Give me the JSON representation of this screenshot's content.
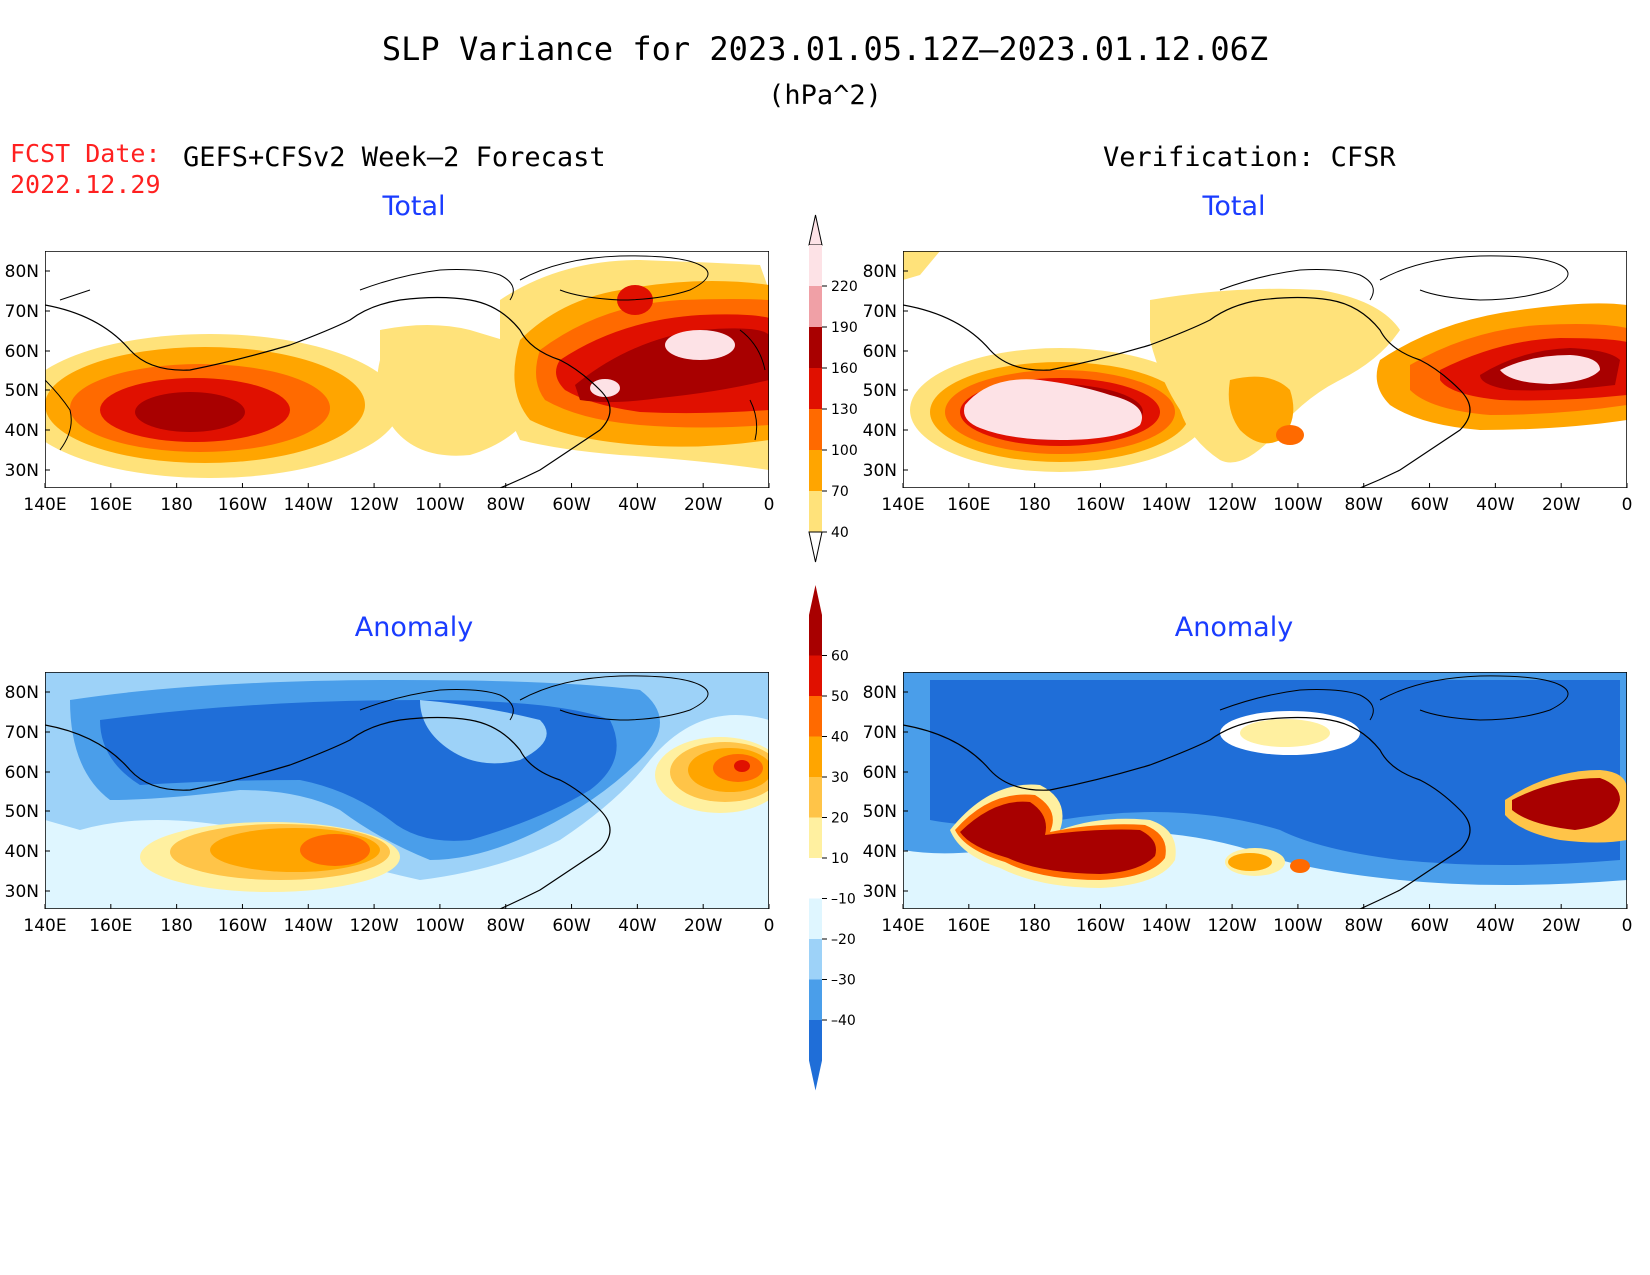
{
  "header": {
    "title": "SLP Variance for 2023.01.05.12Z–2023.01.12.06Z",
    "units": "(hPa^2)",
    "fcst_label": "FCST Date:",
    "fcst_date": "2022.12.29",
    "left_heading": "GEFS+CFSv2 Week–2 Forecast",
    "right_heading": "Verification: CFSR"
  },
  "panels": {
    "forecast_total_title": "Total",
    "verification_total_title": "Total",
    "forecast_anomaly_title": "Anomaly",
    "verification_anomaly_title": "Anomaly"
  },
  "axes": {
    "lon_labels": [
      "140E",
      "160E",
      "180",
      "160W",
      "140W",
      "120W",
      "100W",
      "80W",
      "60W",
      "40W",
      "20W",
      "0"
    ],
    "lat_labels": [
      "80N",
      "70N",
      "60N",
      "50N",
      "40N",
      "30N"
    ]
  },
  "colorbars": {
    "total": {
      "labels": [
        "220",
        "190",
        "160",
        "130",
        "100",
        "70",
        "40"
      ],
      "colors": [
        "#fde2e6",
        "#f0a0a6",
        "#a80000",
        "#e01000",
        "#ff6a00",
        "#ffa500",
        "#ffe27a"
      ]
    },
    "anomaly": {
      "labels": [
        "60",
        "50",
        "40",
        "30",
        "20",
        "10",
        "–10",
        "–20",
        "–30",
        "–40"
      ],
      "colors": [
        "#a80000",
        "#e01000",
        "#ff6a00",
        "#ffa500",
        "#ffc448",
        "#fff0a0",
        "#ffffff",
        "#dff6ff",
        "#9dd2f8",
        "#4a9eea",
        "#1f6ed8"
      ]
    }
  },
  "colors": {
    "title_blue": "#1a3cff",
    "fcst_red": "#ff2020",
    "land_outline": "#000000"
  }
}
